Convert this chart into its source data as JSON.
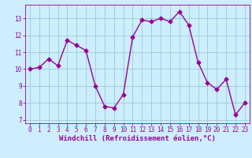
{
  "x": [
    0,
    1,
    2,
    3,
    4,
    5,
    6,
    7,
    8,
    9,
    10,
    11,
    12,
    13,
    14,
    15,
    16,
    17,
    18,
    19,
    20,
    21,
    22,
    23
  ],
  "y": [
    10.0,
    10.1,
    10.6,
    10.2,
    11.7,
    11.4,
    11.1,
    9.0,
    7.8,
    7.7,
    8.5,
    11.9,
    12.9,
    12.8,
    13.0,
    12.8,
    13.4,
    12.6,
    10.4,
    9.2,
    8.8,
    9.4,
    7.3,
    8.0
  ],
  "line_color": "#990099",
  "marker": "D",
  "markersize": 2.5,
  "bg_color": "#cceeff",
  "grid_color": "#99cccc",
  "xlabel": "Windchill (Refroidissement éolien,°C)",
  "xlim": [
    -0.5,
    23.5
  ],
  "ylim": [
    6.8,
    13.8
  ],
  "yticks": [
    7,
    8,
    9,
    10,
    11,
    12,
    13
  ],
  "xticks": [
    0,
    1,
    2,
    3,
    4,
    5,
    6,
    7,
    8,
    9,
    10,
    11,
    12,
    13,
    14,
    15,
    16,
    17,
    18,
    19,
    20,
    21,
    22,
    23
  ],
  "tick_color": "#990099",
  "tick_fontsize": 5.5,
  "xlabel_fontsize": 6.5,
  "linewidth": 1.0
}
